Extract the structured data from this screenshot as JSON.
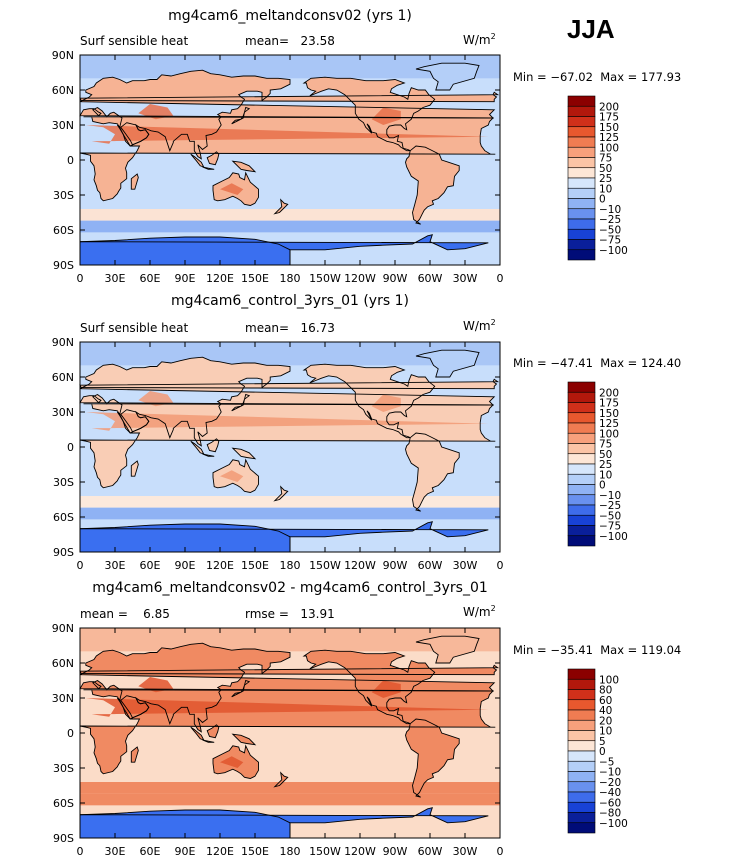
{
  "season": "JJA",
  "units": "W/m",
  "units_exp": "2",
  "lon_ticks": [
    "0",
    "30E",
    "60E",
    "90E",
    "120E",
    "150E",
    "180",
    "150W",
    "120W",
    "90W",
    "60W",
    "30W",
    "0"
  ],
  "lat_ticks": [
    "90N",
    "60N",
    "30N",
    "0",
    "30S",
    "60S",
    "90S"
  ],
  "panels": [
    {
      "title": "mg4cam6_meltandconsv02 (yrs 1)",
      "left_label": "Surf sensible heat",
      "stat_label": "mean=",
      "stat_value": "23.58",
      "min_label": "Min =",
      "min_value": "−67.02",
      "max_label": "Max =",
      "max_value": "177.93",
      "colorbar_labels": [
        "200",
        "175",
        "150",
        "125",
        "100",
        "75",
        "50",
        "25",
        "10",
        "0",
        "−10",
        "−25",
        "−50",
        "−75",
        "−100"
      ],
      "base_color": "#c8defb",
      "polar_color": "#3a6ff0",
      "land_warm": "#f6b394",
      "warm_strong": "#e8704a",
      "ocean_pink": "#fbe3d4"
    },
    {
      "title": "mg4cam6_control_3yrs_01 (yrs 1)",
      "left_label": "Surf sensible heat",
      "stat_label": "mean=",
      "stat_value": "16.73",
      "min_label": "Min =",
      "min_value": "−47.41",
      "max_label": "Max =",
      "max_value": "124.40",
      "colorbar_labels": [
        "200",
        "175",
        "150",
        "125",
        "100",
        "75",
        "50",
        "25",
        "10",
        "0",
        "−10",
        "−25",
        "−50",
        "−75",
        "−100"
      ],
      "base_color": "#c8defb",
      "polar_color": "#3a6ff0",
      "land_warm": "#f9cdb5",
      "warm_strong": "#f29a76",
      "ocean_pink": "#fce9dc"
    },
    {
      "title": "mg4cam6_meltandconsv02 - mg4cam6_control_3yrs_01",
      "left_label": "mean =",
      "left_value": "6.85",
      "stat_label": "rmse =",
      "stat_value": "13.91",
      "min_label": "Min =",
      "min_value": "−35.41",
      "max_label": "Max =",
      "max_value": "119.04",
      "colorbar_labels": [
        "100",
        "80",
        "60",
        "40",
        "20",
        "10",
        "5",
        "0",
        "−5",
        "−10",
        "−20",
        "−40",
        "−60",
        "−80",
        "−100"
      ],
      "base_color": "#fbdcc8",
      "polar_color": "#3a6ff0",
      "land_warm": "#f08a62",
      "warm_strong": "#e0552e",
      "ocean_pink": "#f6a883"
    }
  ],
  "colorbar_colors": [
    "#8b0000",
    "#b2180c",
    "#d0301a",
    "#e8582e",
    "#f07c52",
    "#f7a07c",
    "#fbc4a6",
    "#fde6d6",
    "#d6e6fb",
    "#b4cff8",
    "#8fb2f4",
    "#6991ef",
    "#3e6ceb",
    "#1842d6",
    "#0a1f9a",
    "#000c78"
  ]
}
